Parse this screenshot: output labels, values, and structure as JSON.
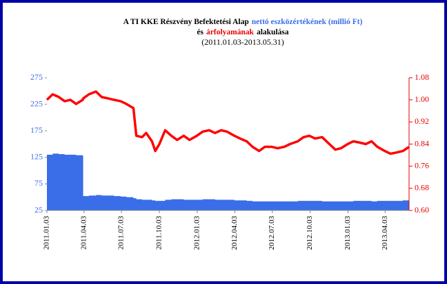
{
  "chart_data": {
    "type": "combo",
    "title_lines": [
      [
        {
          "text": "A TI KKE Részvény Befektetési Alap",
          "color": "#000000"
        },
        {
          "text": "nettó eszközértékének (millió Ft)",
          "color": "#3a6ee8"
        }
      ],
      [
        {
          "text": "és",
          "color": "#000000"
        },
        {
          "text": "árfolyamának",
          "color": "#e60000"
        },
        {
          "text": "alakulása",
          "color": "#000000"
        }
      ]
    ],
    "subtitle": "(2011.01.03-2013.05.31)",
    "x": [
      "2011.01.03",
      "2011.01.17",
      "2011.02.01",
      "2011.02.15",
      "2011.03.01",
      "2011.03.15",
      "2011.03.31",
      "2011.04.01",
      "2011.04.15",
      "2011.05.02",
      "2011.05.16",
      "2011.06.01",
      "2011.06.15",
      "2011.07.01",
      "2011.07.15",
      "2011.08.01",
      "2011.08.08",
      "2011.08.22",
      "2011.09.01",
      "2011.09.15",
      "2011.09.23",
      "2011.10.03",
      "2011.10.17",
      "2011.11.01",
      "2011.11.15",
      "2011.12.01",
      "2011.12.15",
      "2012.01.02",
      "2012.01.16",
      "2012.02.01",
      "2012.02.15",
      "2012.03.01",
      "2012.03.15",
      "2012.04.02",
      "2012.04.16",
      "2012.05.02",
      "2012.05.16",
      "2012.06.01",
      "2012.06.15",
      "2012.07.02",
      "2012.07.16",
      "2012.08.01",
      "2012.08.15",
      "2012.09.03",
      "2012.09.17",
      "2012.10.01",
      "2012.10.15",
      "2012.11.01",
      "2012.11.15",
      "2012.12.03",
      "2012.12.17",
      "2013.01.02",
      "2013.01.16",
      "2013.02.01",
      "2013.02.15",
      "2013.03.01",
      "2013.03.15",
      "2013.04.02",
      "2013.04.16",
      "2013.05.02",
      "2013.05.16",
      "2013.05.31"
    ],
    "series": [
      {
        "type": "area",
        "color": "#3a6ee8",
        "axis": "y",
        "values": [
          130,
          132,
          131,
          130,
          130,
          129,
          128,
          52,
          53,
          54,
          53,
          53,
          52,
          51,
          50,
          48,
          46,
          45,
          45,
          44,
          43,
          43,
          45,
          46,
          46,
          45,
          45,
          45,
          46,
          46,
          45,
          45,
          45,
          44,
          44,
          43,
          42,
          42,
          42,
          42,
          42,
          42,
          42,
          43,
          43,
          43,
          43,
          42,
          42,
          42,
          42,
          42,
          43,
          43,
          43,
          42,
          43,
          43,
          43,
          43,
          44,
          44
        ]
      },
      {
        "type": "line",
        "color": "#ff0000",
        "axis": "y2",
        "values": [
          1.0,
          1.02,
          1.01,
          0.995,
          1.0,
          0.985,
          1.0,
          1.005,
          1.02,
          1.03,
          1.01,
          1.005,
          1.0,
          0.995,
          0.985,
          0.97,
          0.87,
          0.865,
          0.88,
          0.85,
          0.815,
          0.84,
          0.89,
          0.87,
          0.855,
          0.87,
          0.855,
          0.87,
          0.885,
          0.89,
          0.88,
          0.89,
          0.885,
          0.87,
          0.86,
          0.85,
          0.83,
          0.815,
          0.83,
          0.83,
          0.825,
          0.83,
          0.84,
          0.85,
          0.865,
          0.87,
          0.86,
          0.865,
          0.845,
          0.82,
          0.825,
          0.84,
          0.85,
          0.845,
          0.84,
          0.85,
          0.83,
          0.815,
          0.805,
          0.81,
          0.815,
          0.83
        ]
      }
    ],
    "xlim": [
      "2011.01.03",
      "2013.05.31"
    ],
    "xticks": [
      "2011.01.03",
      "2011.04.03",
      "2011.07.03",
      "2011.10.03",
      "2012.01.03",
      "2012.04.03",
      "2012.07.03",
      "2012.10.03",
      "2013.01.03",
      "2013.04.03"
    ],
    "ylim": [
      25,
      275
    ],
    "yticks": [
      25,
      75,
      125,
      175,
      225,
      275
    ],
    "y2lim": [
      0.6,
      1.08
    ],
    "y2ticks": [
      {
        "value": 0.6,
        "label": "0.60"
      },
      0.68,
      0.76,
      0.84,
      0.92,
      {
        "value": 1,
        "label": "1.00"
      },
      1.08
    ],
    "y_color": "#3a6ee8",
    "y2_color": "#e60000"
  }
}
